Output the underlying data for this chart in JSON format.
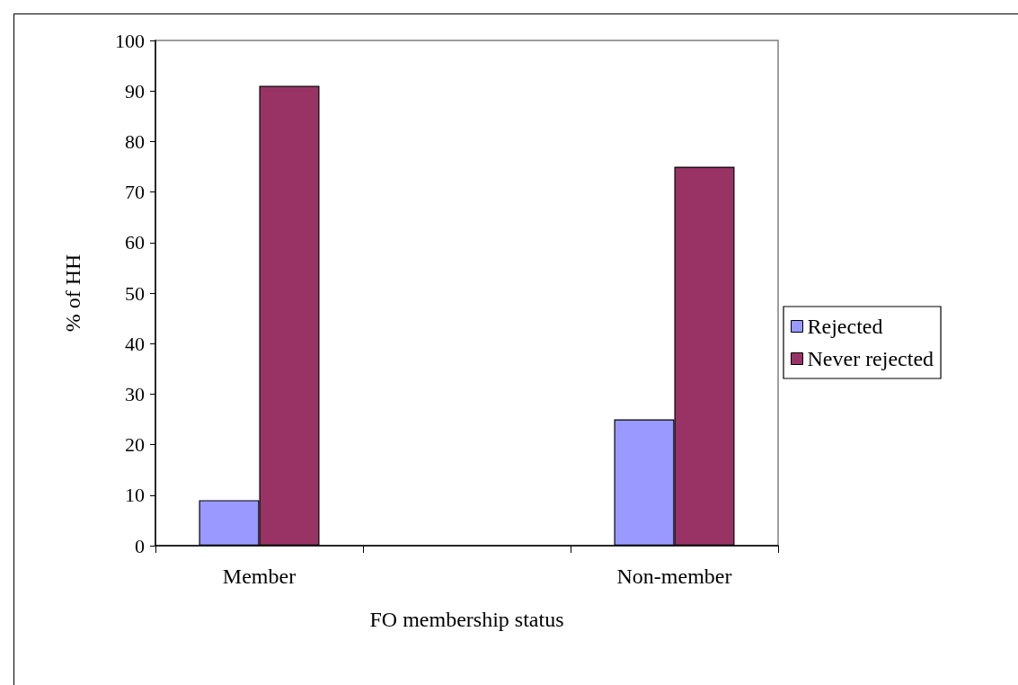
{
  "chart_data": {
    "type": "bar",
    "categories": [
      "Member",
      null,
      "Non-member"
    ],
    "series": [
      {
        "name": "Rejected",
        "color": "#9999ff",
        "values": [
          9,
          null,
          25
        ]
      },
      {
        "name": "Never rejected",
        "color": "#993366",
        "values": [
          91,
          null,
          75
        ]
      }
    ],
    "xlabel": "FO membership status",
    "ylabel": "% of HH",
    "ylim": [
      0,
      100
    ],
    "yticks": [
      0,
      10,
      20,
      30,
      40,
      50,
      60,
      70,
      80,
      90,
      100
    ],
    "grid": false,
    "legend": "right"
  }
}
